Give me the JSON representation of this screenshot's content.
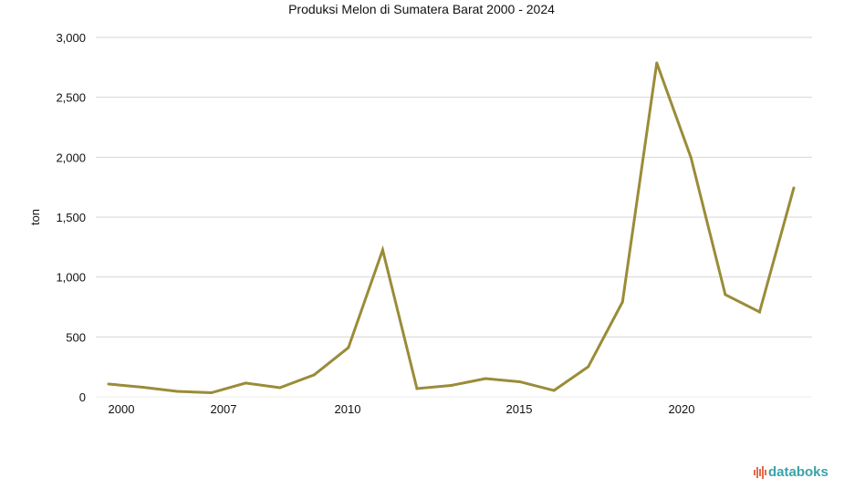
{
  "chart_data": {
    "type": "line",
    "title": "Produksi Melon di Sumatera Barat 2000 - 2024",
    "ylabel": "ton",
    "xlabel": "",
    "ylim": [
      0,
      3000
    ],
    "y_ticks": [
      0,
      500,
      1000,
      1500,
      2000,
      2500,
      3000
    ],
    "y_tick_labels": [
      "0",
      "500",
      "1,000",
      "1,500",
      "2,000",
      "2,500",
      "3,000"
    ],
    "x_tick_labels": [
      "2000",
      "2007",
      "2010",
      "2015",
      "2020"
    ],
    "grid": true,
    "line_color": "#9a8c38",
    "series": [
      {
        "values": [
          107,
          80,
          46,
          34,
          115,
          76,
          183,
          411,
          1226,
          69,
          95,
          152,
          126,
          53,
          251,
          792,
          2787,
          1995,
          853,
          708,
          1744
        ]
      }
    ]
  },
  "branding": {
    "logo_text": "databoks",
    "logo_color": "#3aa3a8"
  }
}
